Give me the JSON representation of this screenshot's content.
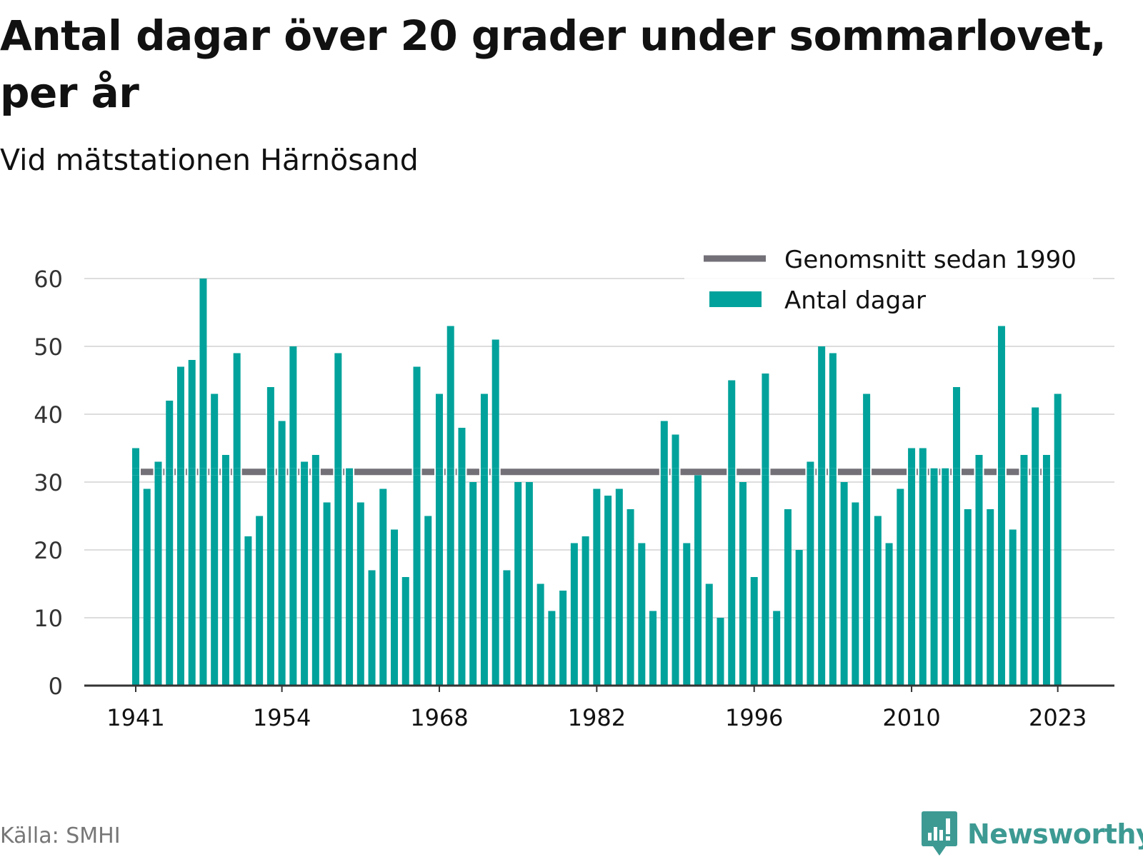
{
  "header": {
    "title": "Antal dagar över 20 grader under sommarlovet, per år",
    "subtitle": "Vid mätstationen Härnösand"
  },
  "footer": {
    "source": "Källa: SMHI",
    "brand": "Newsworthy"
  },
  "colors": {
    "bar": "#00a29b",
    "average": "#737078",
    "grid": "#dddddd",
    "axis": "#333333",
    "brand": "#3d9a93"
  },
  "chart_data": {
    "type": "bar",
    "title": "Antal dagar över 20 grader under sommarlovet, per år",
    "subtitle": "Vid mätstationen Härnösand",
    "xlabel": "",
    "ylabel": "",
    "ylim": [
      0,
      60
    ],
    "y_ticks": [
      0,
      10,
      20,
      30,
      40,
      50,
      60
    ],
    "x_ticks": [
      "1941",
      "1954",
      "1968",
      "1982",
      "1996",
      "2010",
      "2023"
    ],
    "grid": true,
    "legend_position": "top-right",
    "categories": [
      1941,
      1942,
      1943,
      1944,
      1945,
      1946,
      1947,
      1948,
      1949,
      1950,
      1951,
      1952,
      1953,
      1954,
      1955,
      1956,
      1957,
      1958,
      1959,
      1960,
      1961,
      1962,
      1963,
      1964,
      1965,
      1966,
      1967,
      1968,
      1969,
      1970,
      1971,
      1972,
      1973,
      1974,
      1975,
      1976,
      1977,
      1978,
      1979,
      1980,
      1981,
      1982,
      1983,
      1984,
      1985,
      1986,
      1987,
      1988,
      1989,
      1990,
      1991,
      1992,
      1993,
      1994,
      1995,
      1996,
      1997,
      1998,
      1999,
      2000,
      2001,
      2002,
      2003,
      2004,
      2005,
      2006,
      2007,
      2008,
      2009,
      2010,
      2011,
      2012,
      2013,
      2014,
      2015,
      2016,
      2017,
      2018,
      2019,
      2020,
      2021,
      2022,
      2023
    ],
    "series": [
      {
        "name": "Antal dagar",
        "values": [
          35,
          29,
          33,
          42,
          47,
          48,
          60,
          43,
          34,
          49,
          22,
          25,
          44,
          39,
          50,
          33,
          34,
          27,
          49,
          32,
          27,
          17,
          29,
          23,
          16,
          47,
          25,
          43,
          53,
          38,
          30,
          43,
          51,
          17,
          30,
          30,
          15,
          11,
          14,
          21,
          22,
          29,
          28,
          29,
          26,
          21,
          11,
          39,
          37,
          21,
          31,
          15,
          10,
          45,
          30,
          16,
          46,
          11,
          26,
          20,
          33,
          50,
          49,
          30,
          27,
          43,
          25,
          21,
          29,
          35,
          35,
          32,
          32,
          44,
          26,
          34,
          26,
          53,
          23,
          34,
          41,
          34,
          43
        ]
      },
      {
        "name": "Genomsnitt sedan 1990",
        "type": "line",
        "value": 31.5
      }
    ]
  }
}
